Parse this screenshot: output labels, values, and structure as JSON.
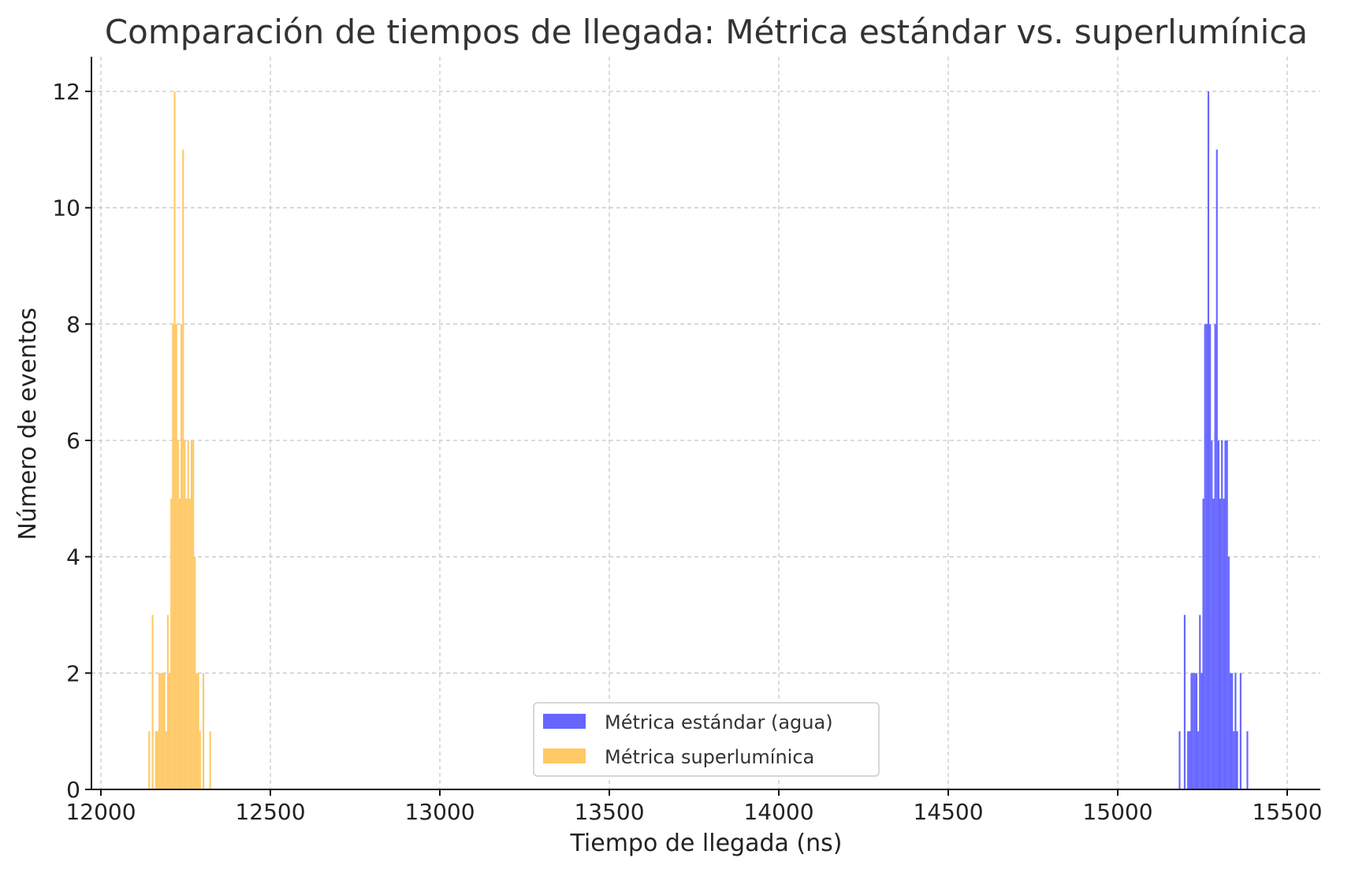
{
  "chart_data": {
    "type": "bar",
    "title": "Comparación de tiempos de llegada: Métrica estándar vs. superlumínica",
    "xlabel": "Tiempo de llegada (ns)",
    "ylabel": "Número de eventos",
    "xlim": [
      11975,
      15600
    ],
    "ylim": [
      0,
      12.6
    ],
    "xticks": [
      12000,
      12500,
      13000,
      13500,
      14000,
      14500,
      15000,
      15500
    ],
    "yticks": [
      0,
      2,
      4,
      6,
      8,
      10,
      12
    ],
    "grid": true,
    "legend": "lower center",
    "bin_width": 5,
    "series": [
      {
        "name": "Métrica estándar (agua)",
        "color": "#6666ff",
        "bins": [
          [
            15180,
            1
          ],
          [
            15195,
            3
          ],
          [
            15205,
            1
          ],
          [
            15210,
            1
          ],
          [
            15215,
            2
          ],
          [
            15220,
            2
          ],
          [
            15225,
            2
          ],
          [
            15230,
            2
          ],
          [
            15235,
            1
          ],
          [
            15240,
            3
          ],
          [
            15245,
            2
          ],
          [
            15250,
            5
          ],
          [
            15255,
            8
          ],
          [
            15260,
            8
          ],
          [
            15265,
            12
          ],
          [
            15270,
            8
          ],
          [
            15275,
            6
          ],
          [
            15280,
            5
          ],
          [
            15285,
            8
          ],
          [
            15290,
            11
          ],
          [
            15295,
            6
          ],
          [
            15300,
            5
          ],
          [
            15305,
            6
          ],
          [
            15310,
            5
          ],
          [
            15315,
            6
          ],
          [
            15320,
            6
          ],
          [
            15325,
            4
          ],
          [
            15330,
            2
          ],
          [
            15335,
            2
          ],
          [
            15340,
            1
          ],
          [
            15345,
            2
          ],
          [
            15350,
            1
          ],
          [
            15360,
            2
          ],
          [
            15380,
            1
          ]
        ]
      },
      {
        "name": "Métrica superlumínica",
        "color": "#ffc966",
        "bins": [
          [
            12140,
            1
          ],
          [
            12150,
            3
          ],
          [
            12160,
            1
          ],
          [
            12165,
            1
          ],
          [
            12170,
            2
          ],
          [
            12175,
            2
          ],
          [
            12180,
            2
          ],
          [
            12185,
            2
          ],
          [
            12190,
            1
          ],
          [
            12195,
            3
          ],
          [
            12200,
            2
          ],
          [
            12205,
            5
          ],
          [
            12210,
            8
          ],
          [
            12215,
            12
          ],
          [
            12220,
            8
          ],
          [
            12225,
            6
          ],
          [
            12230,
            5
          ],
          [
            12235,
            8
          ],
          [
            12240,
            11
          ],
          [
            12245,
            6
          ],
          [
            12250,
            5
          ],
          [
            12255,
            6
          ],
          [
            12260,
            5
          ],
          [
            12265,
            6
          ],
          [
            12270,
            6
          ],
          [
            12275,
            4
          ],
          [
            12280,
            2
          ],
          [
            12285,
            2
          ],
          [
            12290,
            1
          ],
          [
            12300,
            2
          ],
          [
            12320,
            1
          ]
        ]
      }
    ]
  }
}
